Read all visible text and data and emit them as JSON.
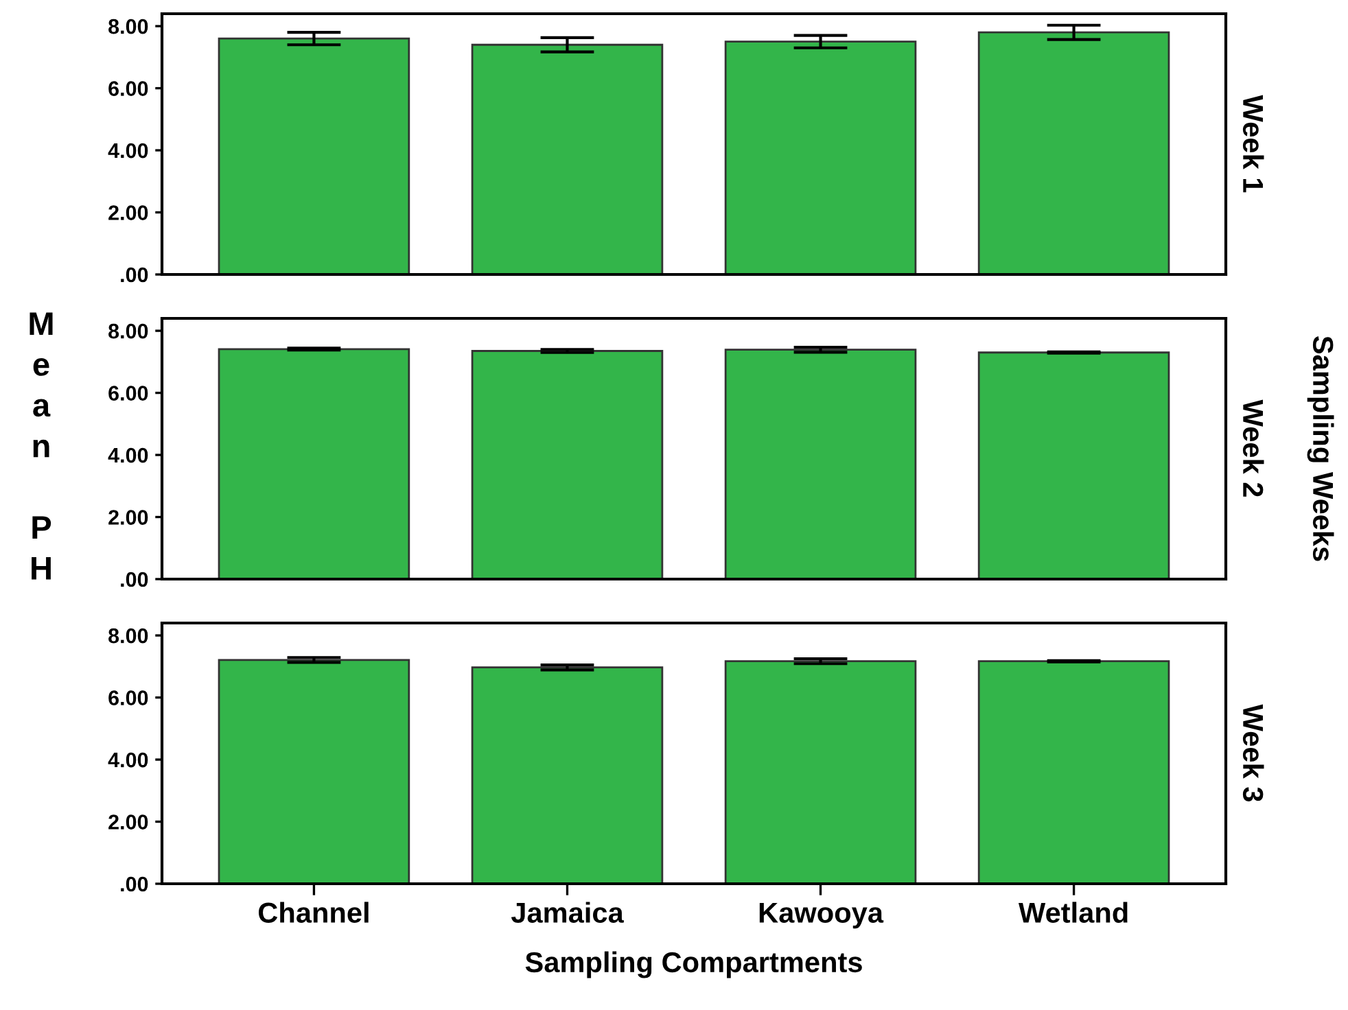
{
  "chart_data": [
    {
      "type": "bar",
      "y2label": "Week 1",
      "values": [
        7.6,
        7.4,
        7.5,
        7.8
      ],
      "errors": [
        0.2,
        0.23,
        0.2,
        0.23
      ],
      "color": "#33b54a",
      "ylim": [
        0,
        8.4
      ],
      "yticks": [
        {
          "value": 0,
          "label": ".00"
        },
        {
          "value": 2,
          "label": "2.00"
        },
        {
          "value": 4,
          "label": "4.00"
        },
        {
          "value": 6,
          "label": "6.00"
        },
        {
          "value": 8,
          "label": "8.00"
        }
      ],
      "tick_labels": "y",
      "grid": false,
      "legend": false
    },
    {
      "type": "bar",
      "y2label": "Week 2",
      "ylabel": "Mean PH",
      "annotations": [
        "Sampling Weeks"
      ],
      "values": [
        7.41,
        7.35,
        7.39,
        7.3
      ],
      "errors": [
        0.03,
        0.05,
        0.08,
        0.02
      ],
      "color": "#33b54a",
      "ylim": [
        0,
        8.4
      ],
      "yticks": [
        {
          "value": 0,
          "label": ".00"
        },
        {
          "value": 2,
          "label": "2.00"
        },
        {
          "value": 4,
          "label": "4.00"
        },
        {
          "value": 6,
          "label": "6.00"
        },
        {
          "value": 8,
          "label": "8.00"
        }
      ],
      "tick_labels": "y",
      "grid": false,
      "legend": false
    },
    {
      "type": "bar",
      "y2label": "Week 3",
      "xlabel": "Sampling Compartments",
      "categories": [
        "Channel",
        "Jamaica",
        "Kawooya",
        "Wetland"
      ],
      "values": [
        7.21,
        6.97,
        7.17,
        7.17
      ],
      "errors": [
        0.08,
        0.08,
        0.08,
        0.02
      ],
      "color": "#33b54a",
      "ylim": [
        0,
        8.4
      ],
      "yticks": [
        {
          "value": 0,
          "label": ".00"
        },
        {
          "value": 2,
          "label": "2.00"
        },
        {
          "value": 4,
          "label": "4.00"
        },
        {
          "value": 6,
          "label": "6.00"
        },
        {
          "value": 8,
          "label": "8.00"
        }
      ],
      "grid": false,
      "legend": false
    }
  ]
}
